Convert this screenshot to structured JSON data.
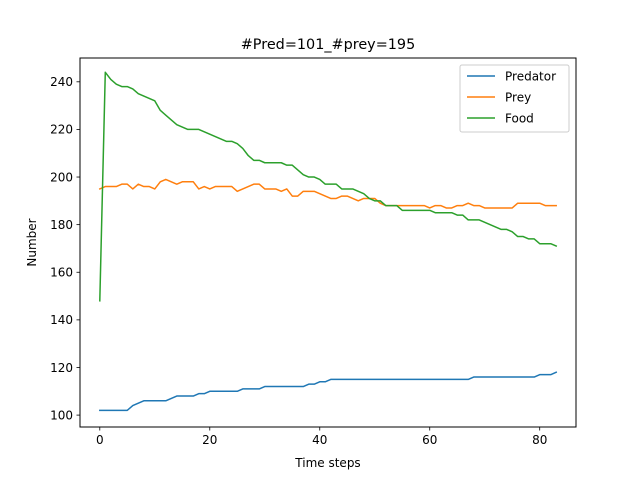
{
  "chart_data": {
    "type": "line",
    "title": "#Pred=101_#prey=195",
    "xlabel": "Time steps",
    "ylabel": "Number",
    "xlim": [
      -3.6,
      86.6
    ],
    "ylim": [
      95,
      250
    ],
    "xticks": [
      0,
      20,
      40,
      60,
      80
    ],
    "yticks": [
      100,
      120,
      140,
      160,
      180,
      200,
      220,
      240
    ],
    "grid": false,
    "legend_position": "top-right",
    "x": [
      0,
      1,
      2,
      3,
      4,
      5,
      6,
      7,
      8,
      9,
      10,
      11,
      12,
      13,
      14,
      15,
      16,
      17,
      18,
      19,
      20,
      21,
      22,
      23,
      24,
      25,
      26,
      27,
      28,
      29,
      30,
      31,
      32,
      33,
      34,
      35,
      36,
      37,
      38,
      39,
      40,
      41,
      42,
      43,
      44,
      45,
      46,
      47,
      48,
      49,
      50,
      51,
      52,
      53,
      54,
      55,
      56,
      57,
      58,
      59,
      60,
      61,
      62,
      63,
      64,
      65,
      66,
      67,
      68,
      69,
      70,
      71,
      72,
      73,
      74,
      75,
      76,
      77,
      78,
      79,
      80,
      81,
      82,
      83
    ],
    "series": [
      {
        "name": "Predator",
        "color": "#1f77b4",
        "values": [
          102,
          102,
          102,
          102,
          102,
          102,
          104,
          105,
          106,
          106,
          106,
          106,
          106,
          107,
          108,
          108,
          108,
          108,
          109,
          109,
          110,
          110,
          110,
          110,
          110,
          110,
          111,
          111,
          111,
          111,
          112,
          112,
          112,
          112,
          112,
          112,
          112,
          112,
          113,
          113,
          114,
          114,
          115,
          115,
          115,
          115,
          115,
          115,
          115,
          115,
          115,
          115,
          115,
          115,
          115,
          115,
          115,
          115,
          115,
          115,
          115,
          115,
          115,
          115,
          115,
          115,
          115,
          115,
          116,
          116,
          116,
          116,
          116,
          116,
          116,
          116,
          116,
          116,
          116,
          116,
          117,
          117,
          117,
          118
        ]
      },
      {
        "name": "Prey",
        "color": "#ff7f0e",
        "values": [
          195,
          196,
          196,
          196,
          197,
          197,
          195,
          197,
          196,
          196,
          195,
          198,
          199,
          198,
          197,
          198,
          198,
          198,
          195,
          196,
          195,
          196,
          196,
          196,
          196,
          194,
          195,
          196,
          197,
          197,
          195,
          195,
          195,
          194,
          195,
          192,
          192,
          194,
          194,
          194,
          193,
          192,
          191,
          191,
          192,
          192,
          191,
          190,
          191,
          191,
          191,
          189,
          188,
          188,
          188,
          188,
          188,
          188,
          188,
          188,
          187,
          188,
          188,
          187,
          187,
          188,
          188,
          189,
          188,
          188,
          187,
          187,
          187,
          187,
          187,
          187,
          189,
          189,
          189,
          189,
          189,
          188,
          188,
          188
        ]
      },
      {
        "name": "Food",
        "color": "#2ca02c",
        "values": [
          148,
          244,
          241,
          239,
          238,
          238,
          237,
          235,
          234,
          233,
          232,
          228,
          226,
          224,
          222,
          221,
          220,
          220,
          220,
          219,
          218,
          217,
          216,
          215,
          215,
          214,
          212,
          209,
          207,
          207,
          206,
          206,
          206,
          206,
          205,
          205,
          203,
          201,
          200,
          200,
          199,
          197,
          197,
          197,
          195,
          195,
          195,
          194,
          193,
          191,
          190,
          190,
          188,
          188,
          188,
          186,
          186,
          186,
          186,
          186,
          186,
          185,
          185,
          185,
          185,
          184,
          184,
          182,
          182,
          182,
          181,
          180,
          179,
          178,
          178,
          177,
          175,
          175,
          174,
          174,
          172,
          172,
          172,
          171
        ]
      }
    ]
  }
}
